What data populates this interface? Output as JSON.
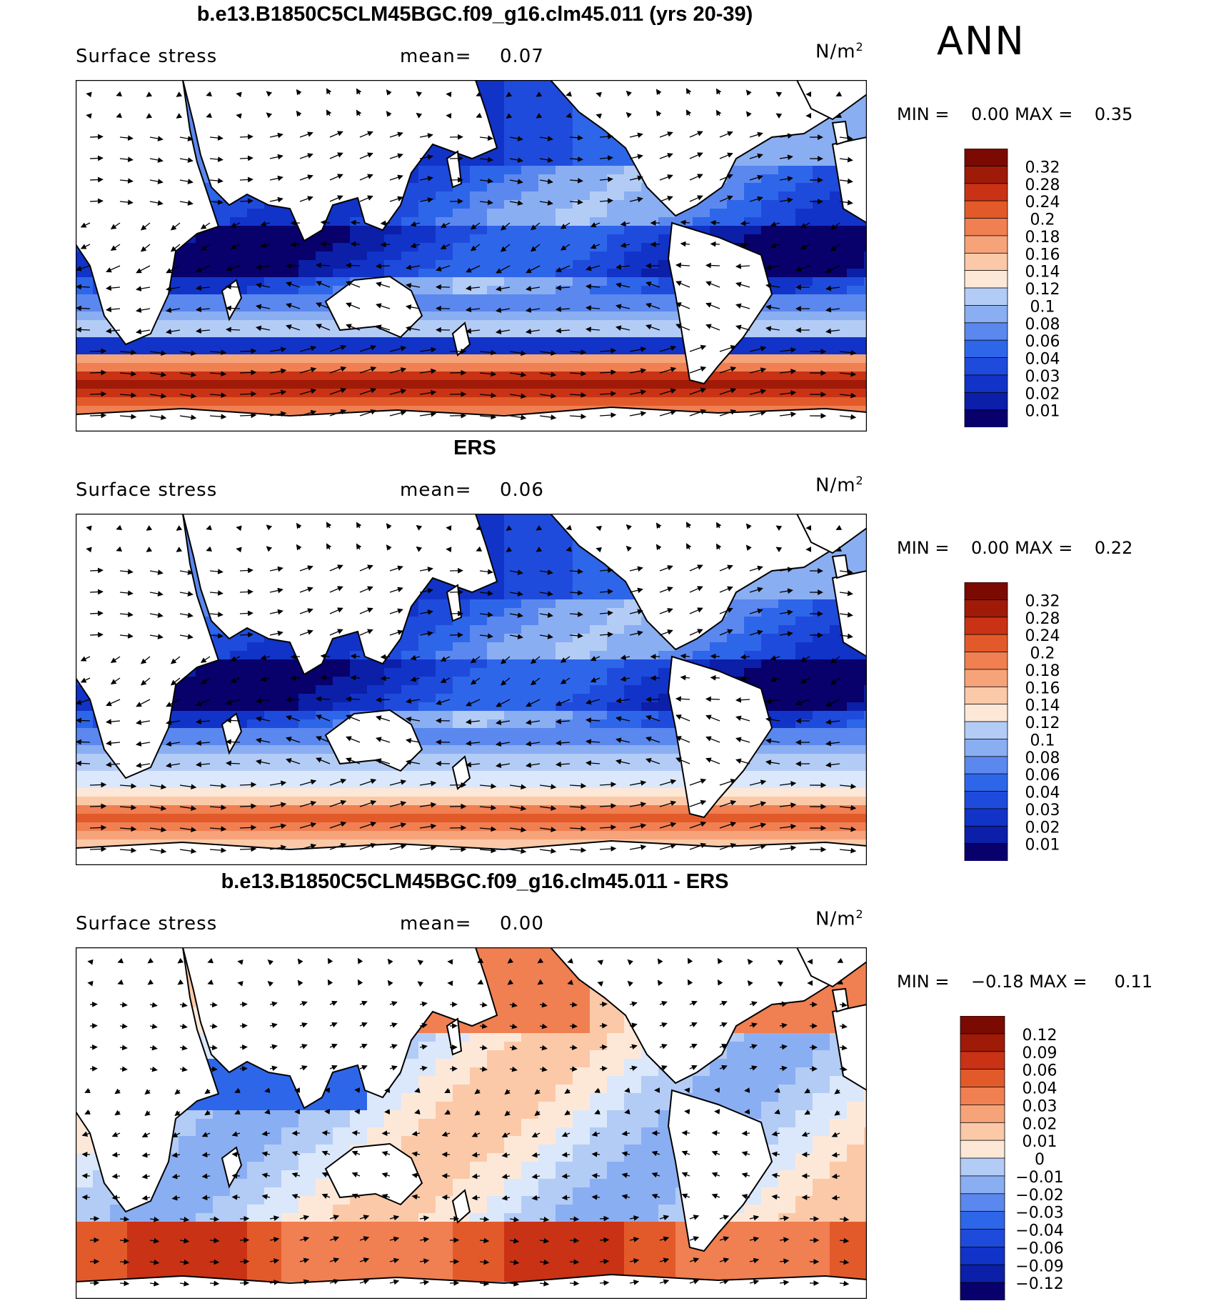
{
  "season": "ANN",
  "units": "N/m",
  "units_exp": "2",
  "variable": "Surface stress",
  "mean_label": "mean=",
  "min_label": "MIN =",
  "max_label": "MAX =",
  "colors": {
    "land": "#ffffff",
    "coast": "#000000",
    "abs_scale": [
      "#08006b",
      "#0b1fa8",
      "#1133c8",
      "#1f4bdc",
      "#2e66ea",
      "#5b88ee",
      "#8aaef2",
      "#b3ccf6",
      "#dbe8fb",
      "#fde8d8",
      "#fbc9a8",
      "#f7a37a",
      "#f07f52",
      "#e35a2a",
      "#c93214",
      "#a01a08",
      "#7a0a02"
    ],
    "diff_scale": [
      "#08006b",
      "#0b1fa8",
      "#1133c8",
      "#1f4bdc",
      "#2e66ea",
      "#5b88ee",
      "#8aaef2",
      "#b3ccf6",
      "#dbe8fb",
      "#fde8d8",
      "#fbc9a8",
      "#f7a37a",
      "#f07f52",
      "#e35a2a",
      "#c93214",
      "#a01a08",
      "#7a0a02"
    ]
  },
  "chart_data": [
    {
      "type": "heatmap",
      "subtype": "vector-overlay map",
      "title": "b.e13.B1850C5CLM45BGC.f09_g16.clm45.011 (yrs 20-39)",
      "mean": "0.07",
      "min": "0.00",
      "max": "0.35",
      "levels": [
        "0.01",
        "0.02",
        "0.03",
        "0.04",
        "0.06",
        "0.08",
        "0.1",
        "0.12",
        "0.14",
        "0.16",
        "0.18",
        "0.2",
        "0.24",
        "0.28",
        "0.32"
      ],
      "features": {
        "southern_westerlies_peak": 0.28,
        "tropical_trades": 0.08,
        "tropical_calm": 0.03
      }
    },
    {
      "type": "heatmap",
      "subtype": "vector-overlay map",
      "title": "ERS",
      "mean": "0.06",
      "min": "0.00",
      "max": "0.22",
      "levels": [
        "0.01",
        "0.02",
        "0.03",
        "0.04",
        "0.06",
        "0.08",
        "0.1",
        "0.12",
        "0.14",
        "0.16",
        "0.18",
        "0.2",
        "0.24",
        "0.28",
        "0.32"
      ],
      "features": {
        "southern_westerlies_peak": 0.2,
        "tropical_trades": 0.06,
        "tropical_calm": 0.03
      }
    },
    {
      "type": "heatmap",
      "subtype": "vector-overlay difference map",
      "title": "b.e13.B1850C5CLM45BGC.f09_g16.clm45.011 - ERS",
      "mean": "0.00",
      "min": "−0.18",
      "max": "0.11",
      "levels": [
        "−0.12",
        "−0.09",
        "−0.06",
        "−0.04",
        "−0.03",
        "−0.02",
        "−0.01",
        "0",
        "0.01",
        "0.02",
        "0.03",
        "0.04",
        "0.06",
        "0.09",
        "0.12"
      ],
      "features": {
        "southern_westerlies_diff": 0.06,
        "north_pacific_diff": 0.06,
        "indian_ocean_diff": -0.06
      }
    }
  ]
}
